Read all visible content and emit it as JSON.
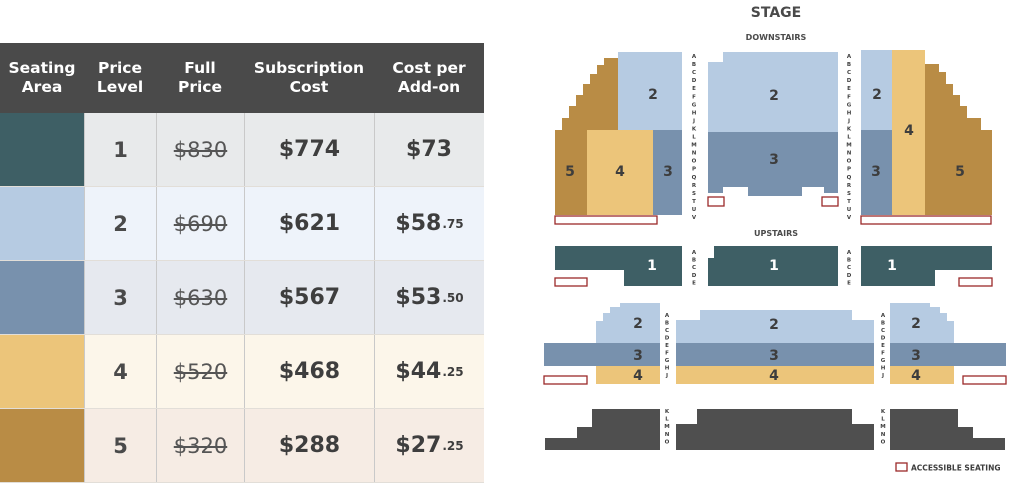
{
  "table": {
    "headers": [
      "Seating\nArea",
      "Price\nLevel",
      "Full\nPrice",
      "Subscription\nCost",
      "Cost per\nAdd-on"
    ],
    "rows": [
      {
        "color": "#3e5f65",
        "bg": "#e8eaeb",
        "level": "1",
        "full": "$830",
        "sub": "$774",
        "addon_whole": "$73",
        "addon_cents": ""
      },
      {
        "color": "#b6cbe2",
        "bg": "#eef3fa",
        "level": "2",
        "full": "$690",
        "sub": "$621",
        "addon_whole": "$58",
        "addon_cents": ".75"
      },
      {
        "color": "#7891ad",
        "bg": "#e6e9ef",
        "level": "3",
        "full": "$630",
        "sub": "$567",
        "addon_whole": "$53",
        "addon_cents": ".50"
      },
      {
        "color": "#ecc57a",
        "bg": "#fcf6ea",
        "level": "4",
        "full": "$520",
        "sub": "$468",
        "addon_whole": "$44",
        "addon_cents": ".25"
      },
      {
        "color": "#b98c45",
        "bg": "#f6ece4",
        "level": "5",
        "full": "$320",
        "sub": "$288",
        "addon_whole": "$27",
        "addon_cents": ".25"
      }
    ]
  },
  "map": {
    "stage": "STAGE",
    "downstairs": "DOWNSTAIRS",
    "upstairs": "UPSTAIRS",
    "accessible": "ACCESSIBLE SEATING",
    "rows_down": "ABCDEFGHJKLMNOPQRSTUV",
    "rows_up": "ABCDE",
    "rows_bal": "ABCDEFGHJ",
    "rows_rear": "KLMNO"
  },
  "colors": {
    "level1": "#3e5f65",
    "level2": "#b6cbe2",
    "level3": "#7891ad",
    "level4": "#ecc57a",
    "level5": "#b98c45",
    "rear": "#4f4f4f",
    "accessible": "#9c2a2a",
    "header": "#4a4a4a"
  }
}
